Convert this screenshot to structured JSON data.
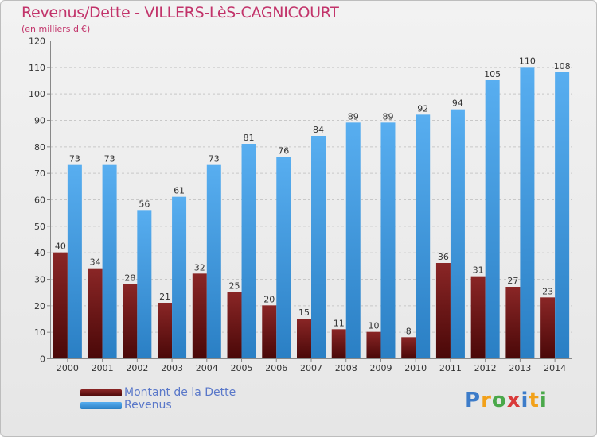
{
  "chart_data": {
    "type": "bar",
    "title": "Revenus/Dette - VILLERS-LèS-CAGNICOURT",
    "subtitle": "(en milliers d'€)",
    "categories": [
      "2000",
      "2001",
      "2002",
      "2003",
      "2004",
      "2005",
      "2006",
      "2007",
      "2008",
      "2009",
      "2010",
      "2011",
      "2012",
      "2013",
      "2014"
    ],
    "series": [
      {
        "name": "Montant de la Dette",
        "color": "#7a1818",
        "values": [
          40,
          34,
          28,
          21,
          32,
          25,
          20,
          15,
          11,
          10,
          8,
          36,
          31,
          27,
          23
        ]
      },
      {
        "name": "Revenus",
        "color": "#3c97e0",
        "values": [
          73,
          73,
          56,
          61,
          73,
          81,
          76,
          84,
          89,
          89,
          92,
          94,
          105,
          110,
          108
        ]
      }
    ],
    "yticks": [
      "0",
      "10",
      "20",
      "30",
      "40",
      "50",
      "60",
      "70",
      "80",
      "90",
      "100",
      "110",
      "120"
    ],
    "ylim": [
      0,
      120
    ],
    "grid": true,
    "legend_position": "bottom-left"
  },
  "brand": {
    "logo_letters": [
      "P",
      "r",
      "o",
      "x",
      "i",
      "t",
      "i"
    ]
  }
}
